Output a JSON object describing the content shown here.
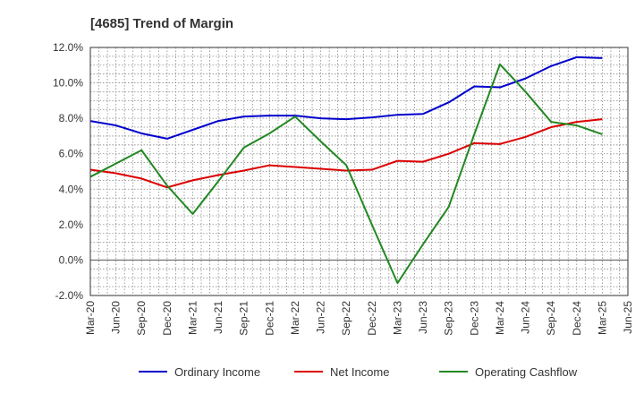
{
  "chart_data": {
    "type": "line",
    "title": "[4685]  Trend of Margin",
    "xlabel": "",
    "ylabel": "",
    "ylim": [
      -2.0,
      12.0
    ],
    "y_ticks": [
      "-2.0%",
      "0.0%",
      "2.0%",
      "4.0%",
      "6.0%",
      "8.0%",
      "10.0%",
      "12.0%"
    ],
    "y_tick_values": [
      -2,
      0,
      2,
      4,
      6,
      8,
      10,
      12
    ],
    "categories": [
      "Mar-20",
      "Jun-20",
      "Sep-20",
      "Dec-20",
      "Mar-21",
      "Jun-21",
      "Sep-21",
      "Dec-21",
      "Mar-22",
      "Jun-22",
      "Sep-22",
      "Dec-22",
      "Mar-23",
      "Jun-23",
      "Sep-23",
      "Dec-23",
      "Mar-24",
      "Jun-24",
      "Sep-24",
      "Dec-24",
      "Mar-25",
      "Jun-25"
    ],
    "grid": true,
    "legend_position": "bottom",
    "series": [
      {
        "name": "Ordinary Income",
        "color": "#0000cc",
        "values": [
          7.85,
          7.6,
          7.15,
          6.85,
          7.35,
          7.85,
          8.1,
          8.15,
          8.15,
          8.0,
          7.95,
          8.05,
          8.2,
          8.25,
          8.9,
          9.8,
          9.75,
          10.25,
          10.95,
          11.45,
          11.4,
          null
        ]
      },
      {
        "name": "Net Income",
        "color": "#dd0000",
        "values": [
          5.1,
          4.9,
          4.6,
          4.1,
          4.5,
          4.8,
          5.05,
          5.35,
          5.25,
          5.15,
          5.05,
          5.1,
          5.6,
          5.55,
          6.0,
          6.6,
          6.55,
          6.95,
          7.5,
          7.8,
          7.95,
          null
        ]
      },
      {
        "name": "Operating Cashflow",
        "color": "#228822",
        "values": [
          4.7,
          5.45,
          6.2,
          4.2,
          2.6,
          4.45,
          6.35,
          7.15,
          8.1,
          6.7,
          5.35,
          2.0,
          -1.3,
          0.9,
          3.0,
          7.1,
          11.05,
          9.5,
          7.8,
          7.6,
          7.1,
          null
        ]
      }
    ]
  }
}
